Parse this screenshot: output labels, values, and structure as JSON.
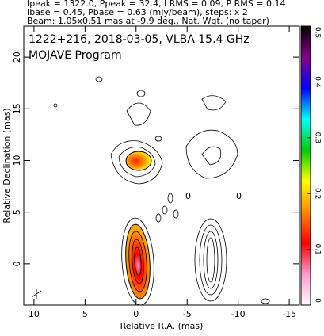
{
  "chart_data": {
    "type": "contour",
    "header": [
      "Ipeak = 1322.0, Ppeak = 32.4, I RMS = 0.09, P RMS = 0.14",
      "Ibase = 0.45, Pbase = 0.63 (mJy/beam), steps: x 2",
      "Beam: 1.05x0.51 mas at -9.9 deg., Nat. Wgt. (no taper)"
    ],
    "title": "1222+216, 2018-03-05, VLBA 15.4 GHz",
    "subtitle": "MOJAVE Program",
    "xlabel": "Relative R.A. (mas)",
    "ylabel": "Relative Declination (mas)",
    "xlim": [
      11,
      -16
    ],
    "ylim": [
      -4,
      23
    ],
    "xticks": [
      10,
      5,
      0,
      -5,
      -10,
      -15
    ],
    "yticks": [
      0,
      5,
      10,
      15,
      20
    ],
    "annotations": [
      "0",
      "0"
    ],
    "cblim": [
      0,
      0.5
    ],
    "cbticks": [
      0,
      0.1,
      0.2,
      0.3,
      0.4,
      0.5
    ],
    "cbcolors": [
      "#ffffff",
      "#ff99cc",
      "#ff0000",
      "#ff8800",
      "#ffff00",
      "#00cc00",
      "#00ffff",
      "#0000ff",
      "#880088",
      "#000000"
    ]
  }
}
